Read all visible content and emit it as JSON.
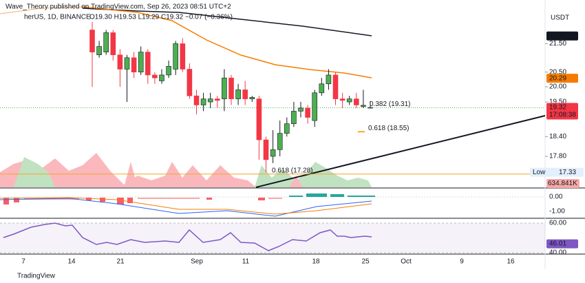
{
  "header": {
    "publisher": "Wave_Theory published on TradingView.com, Sep 26, 2023 08:51 UTC+2",
    "symbol": "herUS, 1D, BINANCE",
    "ohlc": "O19.30 H19.53 L19.29 C19.32 −0.07 (−0.36%)"
  },
  "chart_data": {
    "type": "candlestick",
    "currency": "USDT",
    "open": [
      22.0,
      21.1,
      21.2,
      21.9,
      21.1,
      20.6,
      21.0,
      20.5,
      21.2,
      20.4,
      20.2,
      20.4,
      20.6,
      21.5,
      20.6,
      19.7,
      19.4,
      19.5,
      19.6,
      19.6,
      20.3,
      19.6,
      19.9,
      19.6,
      19.6,
      18.3,
      17.8,
      18.0,
      18.5,
      18.8,
      19.2,
      19.3,
      18.9,
      19.8,
      20.1,
      20.4,
      19.6,
      19.5,
      19.6,
      19.35,
      19.3
    ],
    "high": [
      22.3,
      21.6,
      22.0,
      22.0,
      21.3,
      21.1,
      21.2,
      21.4,
      21.3,
      20.5,
      20.6,
      20.9,
      21.6,
      21.7,
      20.8,
      19.9,
      19.8,
      19.8,
      19.7,
      20.6,
      20.4,
      20.1,
      20.2,
      19.7,
      19.7,
      18.4,
      18.6,
      18.9,
      19.0,
      19.5,
      19.5,
      19.4,
      19.9,
      20.3,
      20.6,
      20.5,
      19.8,
      19.7,
      19.8,
      19.9,
      19.53
    ],
    "low": [
      20.0,
      21.0,
      21.1,
      20.9,
      20.0,
      19.5,
      20.3,
      20.4,
      20.1,
      20.1,
      20.1,
      20.3,
      20.4,
      20.5,
      19.6,
      19.1,
      19.2,
      19.3,
      19.3,
      19.2,
      19.4,
      19.4,
      19.4,
      19.5,
      17.7,
      17.33,
      17.6,
      17.8,
      18.4,
      18.7,
      19.0,
      18.8,
      18.7,
      19.7,
      19.9,
      19.4,
      19.3,
      19.4,
      19.3,
      19.3,
      19.29
    ],
    "close": [
      21.2,
      21.4,
      21.9,
      21.1,
      20.6,
      21.0,
      20.5,
      21.2,
      20.4,
      20.3,
      20.4,
      20.7,
      21.5,
      20.6,
      19.7,
      19.4,
      19.6,
      19.6,
      19.55,
      20.3,
      19.6,
      19.9,
      19.6,
      19.65,
      18.3,
      17.7,
      18.0,
      18.5,
      18.8,
      19.2,
      19.3,
      19.0,
      19.8,
      20.1,
      20.4,
      19.6,
      19.55,
      19.6,
      19.4,
      19.39,
      19.32
    ],
    "up_color": "#4caf50",
    "down_color": "#f23645",
    "log_scale": true,
    "ylim": [
      16.9,
      23.0
    ],
    "yticks": [
      {
        "value": 21.5,
        "label": "21.50"
      },
      {
        "value": 20.5,
        "label": "20.50"
      },
      {
        "value": 20,
        "label": "20.00"
      },
      {
        "value": 19.5,
        "label": "19.50"
      },
      {
        "value": 18.4,
        "label": "18.40"
      },
      {
        "value": 17.8,
        "label": "17.80"
      }
    ],
    "price_labels": [
      {
        "value": 21.78,
        "label": "21.78",
        "color": "#131722"
      },
      {
        "value": 20.29,
        "label": "20.29",
        "color": "#f57c00"
      },
      {
        "value": 19.32,
        "label": "19.32",
        "color": "#f23645",
        "sub": "17:08:38"
      }
    ],
    "low_label": {
      "name": "Low",
      "value": 17.33,
      "label": "17.33"
    },
    "levels": [
      {
        "label": "0.382 (19.31)",
        "value": 19.31,
        "color": "#4caf50"
      },
      {
        "label": "0.618 (18.55)",
        "value": 18.55,
        "color": "#f5a623"
      },
      {
        "label": "0.618 (17.28)",
        "value": 17.28,
        "color": "#f5a623"
      }
    ],
    "volume_label": "634.841K",
    "x_labels": [
      "7",
      "14",
      "21",
      "Sep",
      "11",
      "18",
      "25",
      "Oct",
      "9",
      "16"
    ]
  },
  "macd": {
    "ticks": [
      {
        "value": 0,
        "label": "0.00"
      },
      {
        "value": -1,
        "label": "-1.00"
      }
    ]
  },
  "rsi": {
    "ticks": [
      {
        "value": 60,
        "label": "60.00"
      },
      {
        "value": 40,
        "label": "40.00"
      }
    ],
    "current": {
      "value": 46.01,
      "label": "46.01"
    }
  },
  "footer": "TradingView"
}
